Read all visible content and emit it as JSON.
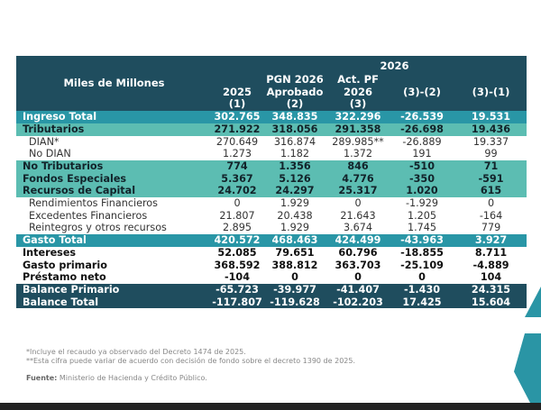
{
  "header": {
    "label": "Miles de Millones",
    "year_group": "2026",
    "columns": [
      "2025\n(1)",
      "PGN 2026 Aprobado (2)",
      "Act. PF 2026 (3)",
      "(3)-(2)",
      "(3)-(1)"
    ],
    "col_lines": [
      [
        "2025",
        "(1)"
      ],
      [
        "PGN 2026",
        "Aprobado",
        "(2)"
      ],
      [
        "Act. PF",
        "2026",
        "(3)"
      ],
      [
        "(3)-(2)"
      ],
      [
        "(3)-(1)"
      ]
    ]
  },
  "rows": [
    {
      "style": "main",
      "label": "Ingreso Total",
      "values": [
        "302.765",
        "348.835",
        "322.296",
        "-26.539",
        "19.531"
      ]
    },
    {
      "style": "sub",
      "label": "Tributarios",
      "values": [
        "271.922",
        "318.056",
        "291.358",
        "-26.698",
        "19.436"
      ]
    },
    {
      "style": "det",
      "label": "DIAN*",
      "values": [
        "270.649",
        "316.874",
        "289.985**",
        "-26.889",
        "19.337"
      ]
    },
    {
      "style": "det",
      "label": "No DIAN",
      "values": [
        "1.273",
        "1.182",
        "1.372",
        "191",
        "99"
      ]
    },
    {
      "style": "sub",
      "label": "No Tributarios",
      "values": [
        "774",
        "1.356",
        "846",
        "-510",
        "71"
      ]
    },
    {
      "style": "sub",
      "label": "Fondos Especiales",
      "values": [
        "5.367",
        "5.126",
        "4.776",
        "-350",
        "-591"
      ]
    },
    {
      "style": "sub",
      "label": "Recursos de Capital",
      "values": [
        "24.702",
        "24.297",
        "25.317",
        "1.020",
        "615"
      ]
    },
    {
      "style": "det",
      "label": "Rendimientos Financieros",
      "values": [
        "0",
        "1.929",
        "0",
        "-1.929",
        "0"
      ]
    },
    {
      "style": "det",
      "label": "Excedentes Financieros",
      "values": [
        "21.807",
        "20.438",
        "21.643",
        "1.205",
        "-164"
      ]
    },
    {
      "style": "det",
      "label": "Reintegros y otros recursos",
      "values": [
        "2.895",
        "1.929",
        "3.674",
        "1.745",
        "779"
      ]
    },
    {
      "style": "main",
      "label": "Gasto Total",
      "values": [
        "420.572",
        "468.463",
        "424.499",
        "-43.963",
        "3.927"
      ]
    },
    {
      "style": "bold",
      "label": "Intereses",
      "values": [
        "52.085",
        "79.651",
        "60.796",
        "-18.855",
        "8.711"
      ]
    },
    {
      "style": "bold",
      "label": "Gasto primario",
      "values": [
        "368.592",
        "388.812",
        "363.703",
        "-25.109",
        "-4.889"
      ]
    },
    {
      "style": "bold",
      "label": "Préstamo neto",
      "values": [
        "-104",
        "0",
        "0",
        "0",
        "104"
      ]
    },
    {
      "style": "bal",
      "label": "Balance Primario",
      "values": [
        "-65.723",
        "-39.977",
        "-41.407",
        "-1.430",
        "24.315"
      ]
    },
    {
      "style": "bal",
      "label": "Balance Total",
      "values": [
        "-117.807",
        "-119.628",
        "-102.203",
        "17.425",
        "15.604"
      ]
    }
  ],
  "notes": [
    "*Incluye el recaudo ya observado del Decreto 1474 de 2025.",
    "**Esta cifra puede variar de acuerdo con decisión de fondo sobre el decreto 1390 de 2025."
  ],
  "source": {
    "label": "Fuente:",
    "text": " Ministerio de Hacienda y Crédito Público."
  },
  "colors": {
    "header": "#1f4d5e",
    "main": "#2996a6",
    "sub": "#5cbdb2"
  }
}
